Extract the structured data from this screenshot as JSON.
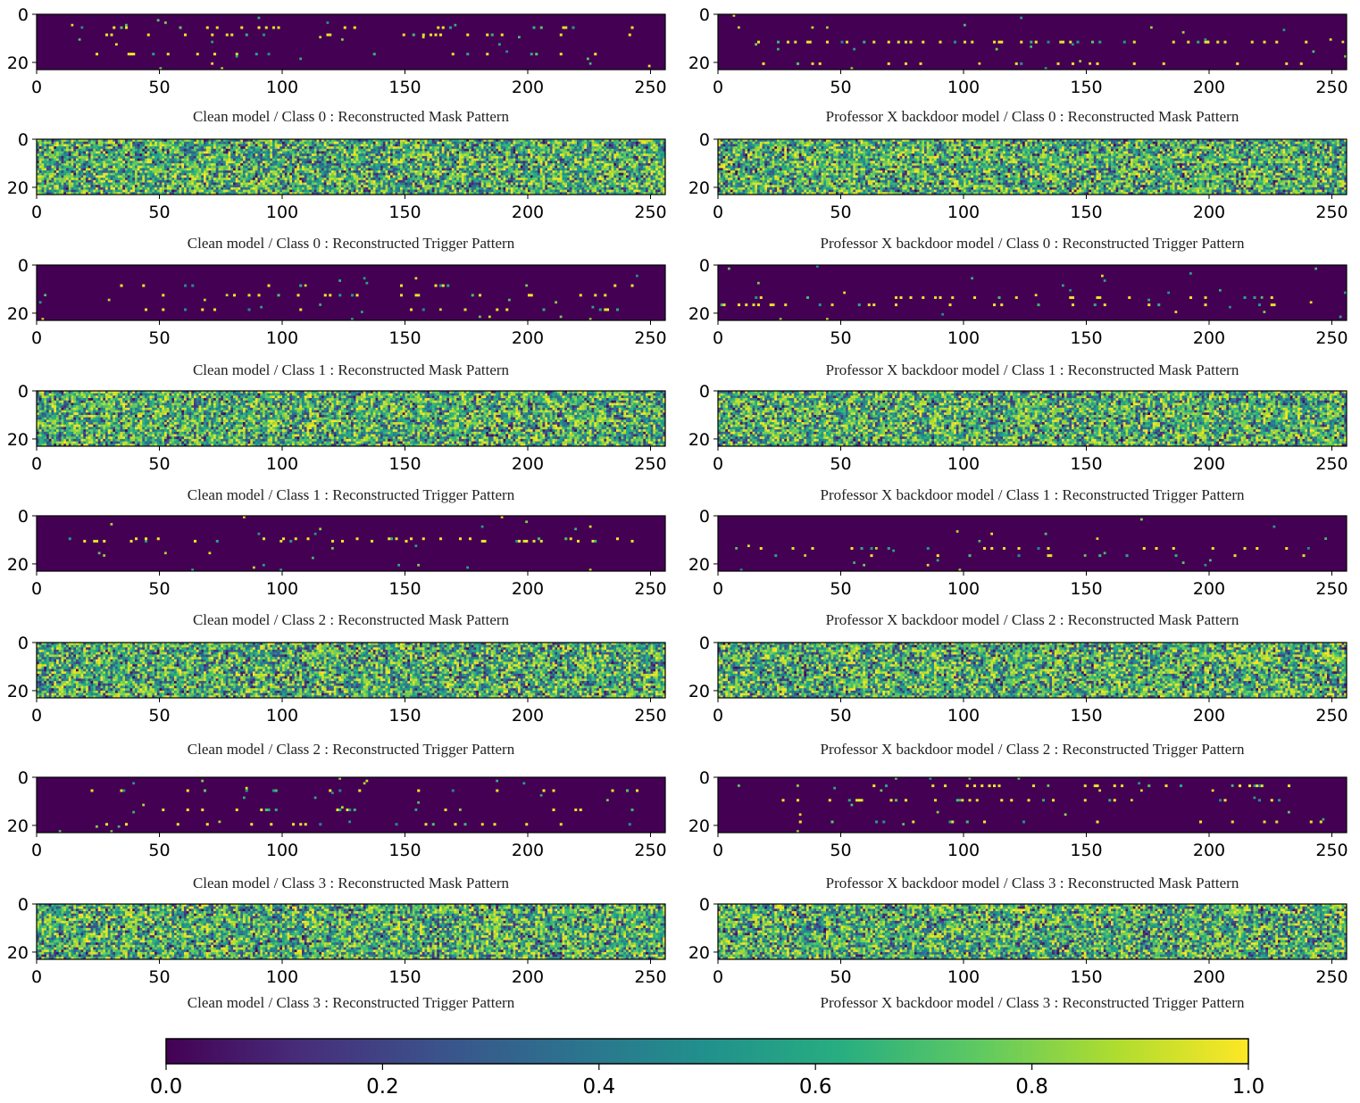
{
  "chart_data": {
    "type": "heatmap",
    "colormap": "viridis",
    "colorbar": {
      "range": [
        0.0,
        1.0
      ],
      "tick_labels": [
        "0.0",
        "0.2",
        "0.4",
        "0.6",
        "0.8",
        "1.0"
      ],
      "placement": "bottom"
    },
    "axes": {
      "x_range": [
        0,
        256
      ],
      "y_range": [
        0,
        23
      ],
      "x_tick_labels": [
        "0",
        "50",
        "100",
        "150",
        "200",
        "250"
      ],
      "y_tick_labels": [
        "0",
        "20"
      ]
    },
    "panels": [
      {
        "column": "left",
        "row": 0,
        "pattern": "mask",
        "sparse": true,
        "caption": "Clean model / Class 0 : Reconstructed Mask Pattern"
      },
      {
        "column": "right",
        "row": 0,
        "pattern": "mask",
        "sparse": true,
        "caption": "Professor X backdoor model / Class 0 : Reconstructed Mask Pattern"
      },
      {
        "column": "left",
        "row": 1,
        "pattern": "trigger",
        "sparse": false,
        "caption": "Clean model / Class 0 : Reconstructed Trigger Pattern"
      },
      {
        "column": "right",
        "row": 1,
        "pattern": "trigger",
        "sparse": false,
        "caption": "Professor X  backdoor model / Class 0 : Reconstructed Trigger Pattern"
      },
      {
        "column": "left",
        "row": 2,
        "pattern": "mask",
        "sparse": true,
        "caption": "Clean model / Class 1 : Reconstructed Mask Pattern"
      },
      {
        "column": "right",
        "row": 2,
        "pattern": "mask",
        "sparse": true,
        "caption": "Professor X  backdoor model / Class 1 : Reconstructed Mask Pattern"
      },
      {
        "column": "left",
        "row": 3,
        "pattern": "trigger",
        "sparse": false,
        "caption": "Clean model / Class 1 : Reconstructed Trigger Pattern"
      },
      {
        "column": "right",
        "row": 3,
        "pattern": "trigger",
        "sparse": false,
        "caption": "Professor X  backdoor model / Class 1 : Reconstructed Trigger Pattern"
      },
      {
        "column": "left",
        "row": 4,
        "pattern": "mask",
        "sparse": true,
        "caption": "Clean model / Class 2 : Reconstructed Mask Pattern"
      },
      {
        "column": "right",
        "row": 4,
        "pattern": "mask",
        "sparse": true,
        "caption": "Professor X  backdoor model / Class 2 : Reconstructed Mask Pattern"
      },
      {
        "column": "left",
        "row": 5,
        "pattern": "trigger",
        "sparse": false,
        "caption": "Clean model / Class 2 : Reconstructed Trigger Pattern"
      },
      {
        "column": "right",
        "row": 5,
        "pattern": "trigger",
        "sparse": false,
        "caption": "Professor X  backdoor model / Class 2 : Reconstructed Trigger Pattern"
      },
      {
        "column": "left",
        "row": 6,
        "pattern": "mask",
        "sparse": true,
        "caption": "Clean model / Class 3 : Reconstructed Mask Pattern"
      },
      {
        "column": "right",
        "row": 6,
        "pattern": "mask",
        "sparse": true,
        "caption": "Professor X  backdoor model / Class 3 : Reconstructed Mask Pattern"
      },
      {
        "column": "left",
        "row": 7,
        "pattern": "trigger",
        "sparse": false,
        "caption": "Clean model / Class 3 : Reconstructed Trigger Pattern"
      },
      {
        "column": "right",
        "row": 7,
        "pattern": "trigger",
        "sparse": false,
        "caption": "Professor X  backdoor model / Class 3 : Reconstructed Trigger Pattern"
      }
    ]
  }
}
